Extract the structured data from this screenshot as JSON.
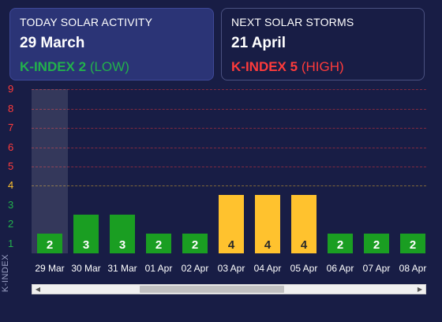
{
  "today": {
    "label": "TODAY SOLAR ACTIVITY",
    "date": "29 March",
    "k_label": "K-INDEX 2",
    "k_level": "(LOW)",
    "color": "#22b14c"
  },
  "next": {
    "label": "NEXT SOLAR STORMS",
    "date": "21 April",
    "k_label": "K-INDEX 5",
    "k_level": "(HIGH)",
    "color": "#ff3b3b"
  },
  "chart_data": {
    "type": "bar",
    "ylabel": "K-INDEX",
    "ylim": [
      0,
      9
    ],
    "yticks": [
      "1",
      "2",
      "3",
      "4",
      "5",
      "6",
      "7",
      "8",
      "9"
    ],
    "ytick_colors": [
      "#22b14c",
      "#22b14c",
      "#22b14c",
      "#ffc22e",
      "#ff3b3b",
      "#ff3b3b",
      "#ff3b3b",
      "#ff3b3b",
      "#ff3b3b"
    ],
    "categories": [
      "29 Mar",
      "30 Mar",
      "31 Mar",
      "01 Apr",
      "02 Apr",
      "03 Apr",
      "04 Apr",
      "05 Apr",
      "06 Apr",
      "07 Apr",
      "08 Apr"
    ],
    "values": [
      2,
      3,
      3,
      2,
      2,
      4,
      4,
      4,
      2,
      2,
      2
    ],
    "highlighted_category": "29 Mar",
    "colors": {
      "low": "#1a9e22",
      "moderate": "#ffc22e",
      "high": "#ff3b3b"
    }
  },
  "scrollbar": {
    "left_arrow": "◀",
    "right_arrow": "▶"
  }
}
